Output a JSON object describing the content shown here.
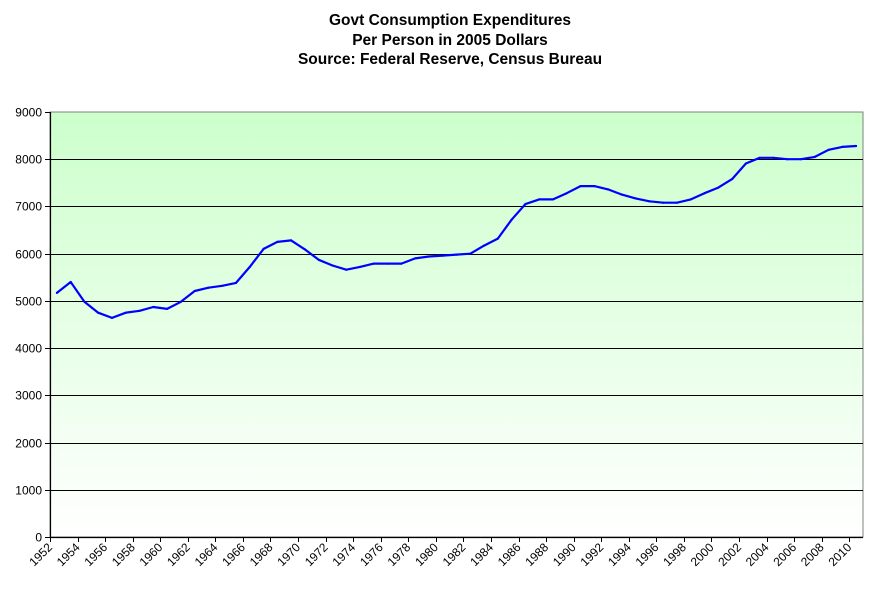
{
  "chart_data": {
    "type": "line",
    "title": "Govt Consumption Expenditures",
    "subtitle": "Per Person in 2005 Dollars",
    "source": "Source:  Federal Reserve, Census Bureau",
    "title_lines": [
      "Govt Consumption Expenditures",
      "Per Person in 2005 Dollars",
      "Source:  Federal Reserve, Census Bureau"
    ],
    "xlabel": "",
    "ylabel": "",
    "ylim": [
      0,
      9000
    ],
    "y_ticks": [
      0,
      1000,
      2000,
      3000,
      4000,
      5000,
      6000,
      7000,
      8000,
      9000
    ],
    "x_tick_labels": [
      "1952",
      "1954",
      "1956",
      "1958",
      "1960",
      "1962",
      "1964",
      "1966",
      "1968",
      "1970",
      "1972",
      "1974",
      "1976",
      "1978",
      "1980",
      "1982",
      "1984",
      "1986",
      "1988",
      "1990",
      "1992",
      "1994",
      "1996",
      "1998",
      "2000",
      "2002",
      "2004",
      "2006",
      "2008",
      "2010"
    ],
    "grid": true,
    "legend": "none",
    "background": "gradient light green (top) to white (bottom)",
    "colors": {
      "line": "#0000ff",
      "grid": "#000000",
      "plot_top": "#ccffcc",
      "plot_bottom": "#ffffff",
      "border": "#808080"
    },
    "series": [
      {
        "name": "Govt Consumption Expenditures Per Person",
        "x": [
          1952,
          1953,
          1954,
          1955,
          1956,
          1957,
          1958,
          1959,
          1960,
          1961,
          1962,
          1963,
          1964,
          1965,
          1966,
          1967,
          1968,
          1969,
          1970,
          1971,
          1972,
          1973,
          1974,
          1975,
          1976,
          1977,
          1978,
          1979,
          1980,
          1981,
          1982,
          1983,
          1984,
          1985,
          1986,
          1987,
          1988,
          1989,
          1990,
          1991,
          1992,
          1993,
          1994,
          1995,
          1996,
          1997,
          1998,
          1999,
          2000,
          2001,
          2002,
          2003,
          2004,
          2005,
          2006,
          2007,
          2008,
          2009,
          2010
        ],
        "values": [
          5170,
          5400,
          4980,
          4750,
          4640,
          4750,
          4790,
          4870,
          4830,
          4980,
          5210,
          5280,
          5320,
          5380,
          5720,
          6100,
          6250,
          6280,
          6090,
          5870,
          5750,
          5660,
          5720,
          5790,
          5790,
          5790,
          5900,
          5940,
          5960,
          5980,
          6000,
          6170,
          6320,
          6720,
          7050,
          7150,
          7150,
          7280,
          7430,
          7430,
          7360,
          7250,
          7170,
          7110,
          7080,
          7080,
          7150,
          7280,
          7400,
          7580,
          7910,
          8030,
          8030,
          8000,
          8000,
          8050,
          8200,
          8260,
          8280
        ]
      }
    ]
  }
}
